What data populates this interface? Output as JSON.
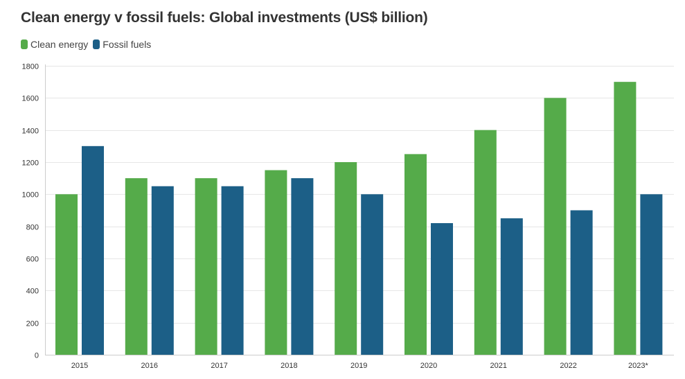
{
  "title": "Clean energy v fossil fuels: Global investments (US$ billion)",
  "legend": [
    {
      "label": "Clean energy",
      "color": "#55ab4a"
    },
    {
      "label": "Fossil fuels",
      "color": "#1c5f87"
    }
  ],
  "chart_data": {
    "type": "bar",
    "title": "Clean energy v fossil fuels: Global investments (US$ billion)",
    "xlabel": "",
    "ylabel": "",
    "ylim": [
      0,
      1800
    ],
    "yticks": [
      0,
      200,
      400,
      600,
      800,
      1000,
      1200,
      1400,
      1600,
      1800
    ],
    "categories": [
      "2015",
      "2016",
      "2017",
      "2018",
      "2019",
      "2020",
      "2021",
      "2022",
      "2023*"
    ],
    "series": [
      {
        "name": "Clean energy",
        "color": "#55ab4a",
        "values": [
          1000,
          1100,
          1100,
          1150,
          1200,
          1250,
          1400,
          1600,
          1700
        ]
      },
      {
        "name": "Fossil fuels",
        "color": "#1c5f87",
        "values": [
          1300,
          1050,
          1050,
          1100,
          1000,
          820,
          850,
          900,
          1000
        ]
      }
    ],
    "grid": true,
    "legend_position": "top-left"
  }
}
